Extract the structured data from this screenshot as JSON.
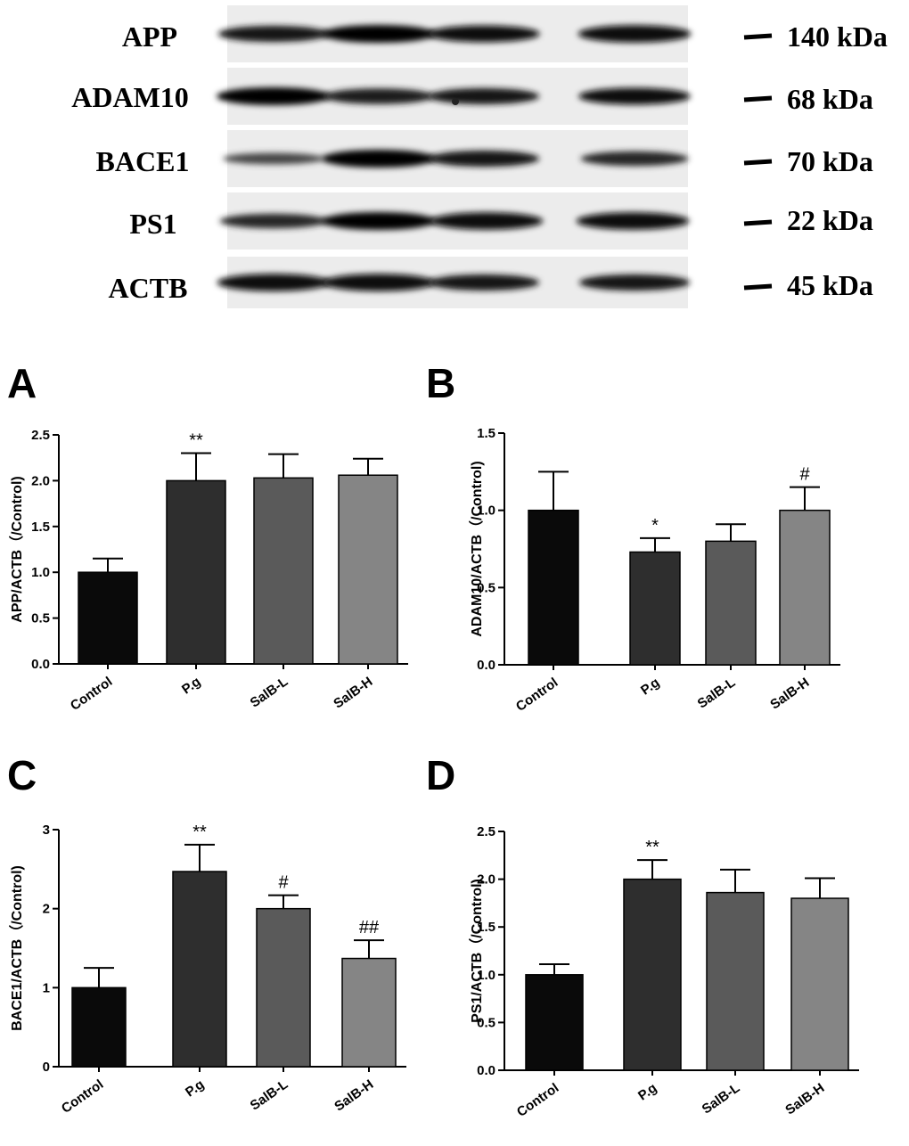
{
  "blot": {
    "rows": [
      {
        "label": "APP",
        "kda": "140 kDa",
        "intensity": [
          0.85,
          1.0,
          0.9,
          0.95
        ]
      },
      {
        "label": "ADAM10",
        "kda": "68 kDa",
        "intensity": [
          1.0,
          0.8,
          0.85,
          0.9
        ]
      },
      {
        "label": "BACE1",
        "kda": "70 kDa",
        "intensity": [
          0.4,
          1.0,
          0.85,
          0.7
        ]
      },
      {
        "label": "PS1",
        "kda": "22 kDa",
        "intensity": [
          0.7,
          1.0,
          0.95,
          0.95
        ]
      },
      {
        "label": "ACTB",
        "kda": "45 kDa",
        "intensity": [
          0.95,
          0.95,
          0.85,
          0.85
        ]
      }
    ]
  },
  "colors": {
    "bars": [
      "#0a0a0a",
      "#2e2e2e",
      "#5a5a5a",
      "#858585"
    ]
  },
  "chart_data": [
    {
      "panel": "A",
      "type": "bar",
      "categories": [
        "Control",
        "P.g",
        "SalB-L",
        "SalB-H"
      ],
      "values": [
        1.0,
        2.0,
        2.03,
        2.06
      ],
      "errors": [
        0.15,
        0.3,
        0.26,
        0.18
      ],
      "significance": [
        "",
        "**",
        "",
        ""
      ],
      "ylabel": "APP/ACTB（/Control)",
      "ylim": [
        0,
        2.5
      ],
      "yticks": [
        0,
        0.5,
        1.0,
        1.5,
        2.0,
        2.5
      ],
      "ytick_labels": [
        "0.0",
        "0.5",
        "1.0",
        "1.5",
        "2.0",
        "2.5"
      ]
    },
    {
      "panel": "B",
      "type": "bar",
      "categories": [
        "Control",
        "P.g",
        "SalB-L",
        "SalB-H"
      ],
      "values": [
        1.0,
        0.73,
        0.8,
        1.0
      ],
      "errors": [
        0.25,
        0.09,
        0.11,
        0.15
      ],
      "significance": [
        "",
        "*",
        "",
        "#"
      ],
      "ylabel": "ADAM10/ACTB（/Control)",
      "ylim": [
        0,
        1.5
      ],
      "yticks": [
        0,
        0.5,
        1.0,
        1.5
      ],
      "ytick_labels": [
        "0.0",
        "0.5",
        "1.0",
        "1.5"
      ]
    },
    {
      "panel": "C",
      "type": "bar",
      "categories": [
        "Control",
        "P.g",
        "SalB-L",
        "SalB-H"
      ],
      "values": [
        1.0,
        2.47,
        2.0,
        1.37
      ],
      "errors": [
        0.25,
        0.34,
        0.17,
        0.23
      ],
      "significance": [
        "",
        "**",
        "#",
        "##"
      ],
      "ylabel": "BACE1/ACTB（/Control)",
      "ylim": [
        0,
        3
      ],
      "yticks": [
        0,
        1,
        2,
        3
      ],
      "ytick_labels": [
        "0",
        "1",
        "2",
        "3"
      ]
    },
    {
      "panel": "D",
      "type": "bar",
      "categories": [
        "Control",
        "P.g",
        "SalB-L",
        "SalB-H"
      ],
      "values": [
        1.0,
        2.0,
        1.86,
        1.8
      ],
      "errors": [
        0.11,
        0.2,
        0.24,
        0.21
      ],
      "significance": [
        "",
        "**",
        "",
        ""
      ],
      "ylabel": "PS1/ACTB（/Control)",
      "ylim": [
        0,
        2.5
      ],
      "yticks": [
        0,
        0.5,
        1.0,
        1.5,
        2.0,
        2.5
      ],
      "ytick_labels": [
        "0.0",
        "0.5",
        "1.0",
        "1.5",
        "2.0",
        "2.5"
      ]
    }
  ]
}
